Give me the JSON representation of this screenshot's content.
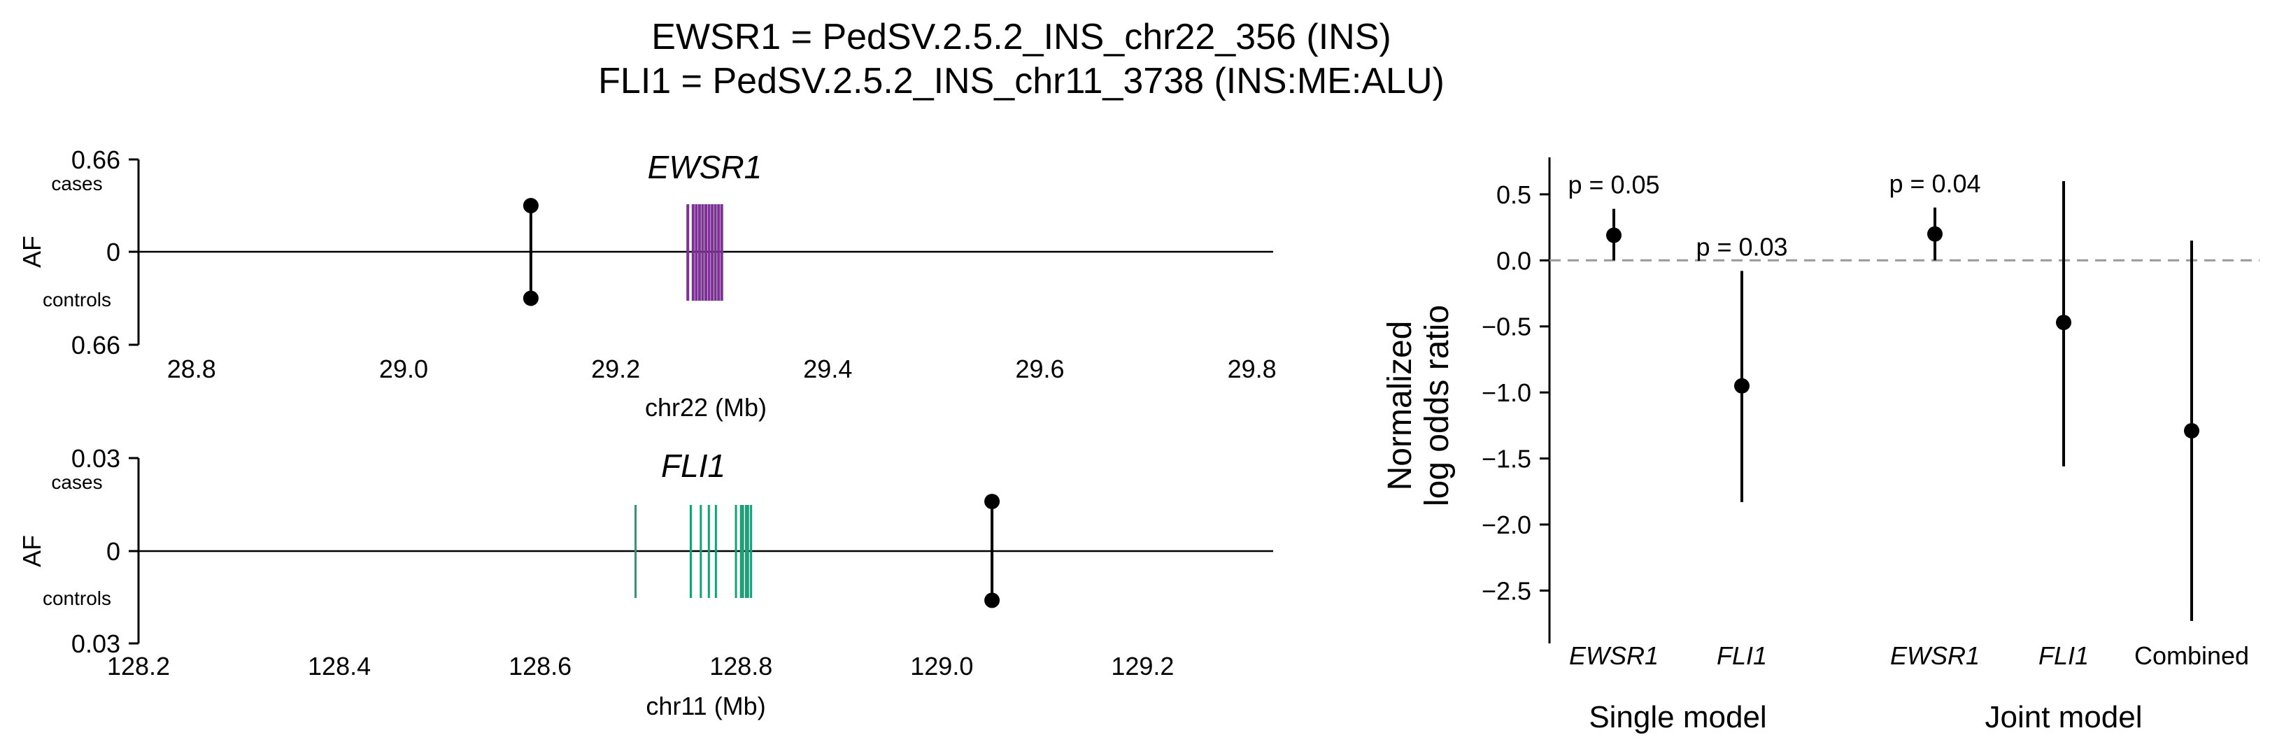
{
  "title_lines": [
    "EWSR1 = PedSV.2.5.2_INS_chr22_356 (INS)",
    "FLI1 = PedSV.2.5.2_INS_chr11_3738 (INS:ME:ALU)"
  ],
  "chart_data": [
    {
      "type": "scatter",
      "gene": "EWSR1",
      "xlabel": "chr22 (Mb)",
      "ylabel": "AF",
      "cases_label": "cases",
      "controls_label": "controls",
      "ylim_labels": [
        "0.66",
        "0",
        "0.66"
      ],
      "xlim": [
        28.75,
        29.82
      ],
      "xticks": [
        28.8,
        29.0,
        29.2,
        29.4,
        29.6,
        29.8
      ],
      "xtick_labels": [
        "28.8",
        "29.0",
        "29.2",
        "29.4",
        "29.6",
        "29.8"
      ],
      "variant": {
        "pos": 29.12,
        "cases_af": 0.33,
        "controls_af": 0.33
      },
      "gene_color": "#7b3294",
      "exons": [
        29.268,
        29.273,
        29.276,
        29.279,
        29.282,
        29.285,
        29.288,
        29.291,
        29.294,
        29.297,
        29.3
      ]
    },
    {
      "type": "scatter",
      "gene": "FLI1",
      "xlabel": "chr11 (Mb)",
      "ylabel": "AF",
      "cases_label": "cases",
      "controls_label": "controls",
      "ylim_labels": [
        "0.03",
        "0",
        "0.03"
      ],
      "xlim": [
        128.2,
        129.33
      ],
      "xticks": [
        128.2,
        128.4,
        128.6,
        128.8,
        129.0,
        129.2
      ],
      "xtick_labels": [
        "128.2",
        "128.4",
        "128.6",
        "128.8",
        "129.0",
        "129.2"
      ],
      "variant": {
        "pos": 129.05,
        "cases_af": 0.016,
        "controls_af": 0.016
      },
      "gene_color": "#1a9e77",
      "exons": [
        128.695,
        128.75,
        128.76,
        128.768,
        128.775,
        128.795,
        128.8,
        128.802,
        128.805,
        128.807,
        128.81
      ]
    },
    {
      "type": "scatter",
      "ylabel_lines": [
        "Normalized",
        "log odds ratio"
      ],
      "ylim": [
        -2.9,
        0.78
      ],
      "yticks": [
        0.5,
        0.0,
        -0.5,
        -1.0,
        -1.5,
        -2.0,
        -2.5
      ],
      "ytick_labels": [
        "0.5",
        "0.0",
        "−0.5",
        "−1.0",
        "−1.5",
        "−2.0",
        "−2.5"
      ],
      "reference_line": 0,
      "groups": [
        "Single model",
        "Joint model"
      ],
      "points": [
        {
          "label": "EWSR1",
          "italic": true,
          "group": "Single model",
          "estimate": 0.19,
          "ci_low": 0.0,
          "ci_high": 0.39,
          "p_label": "p = 0.05"
        },
        {
          "label": "FLI1",
          "italic": true,
          "group": "Single model",
          "estimate": -0.95,
          "ci_low": -1.83,
          "ci_high": -0.08,
          "p_label": "p = 0.03"
        },
        {
          "label": "EWSR1",
          "italic": true,
          "group": "Joint model",
          "estimate": 0.2,
          "ci_low": 0.0,
          "ci_high": 0.4,
          "p_label": "p = 0.04"
        },
        {
          "label": "FLI1",
          "italic": true,
          "group": "Joint model",
          "estimate": -0.47,
          "ci_low": -1.56,
          "ci_high": 0.6,
          "p_label": ""
        },
        {
          "label": "Combined",
          "italic": false,
          "group": "Joint model",
          "estimate": -1.29,
          "ci_low": -2.73,
          "ci_high": 0.15,
          "p_label": ""
        }
      ]
    }
  ]
}
